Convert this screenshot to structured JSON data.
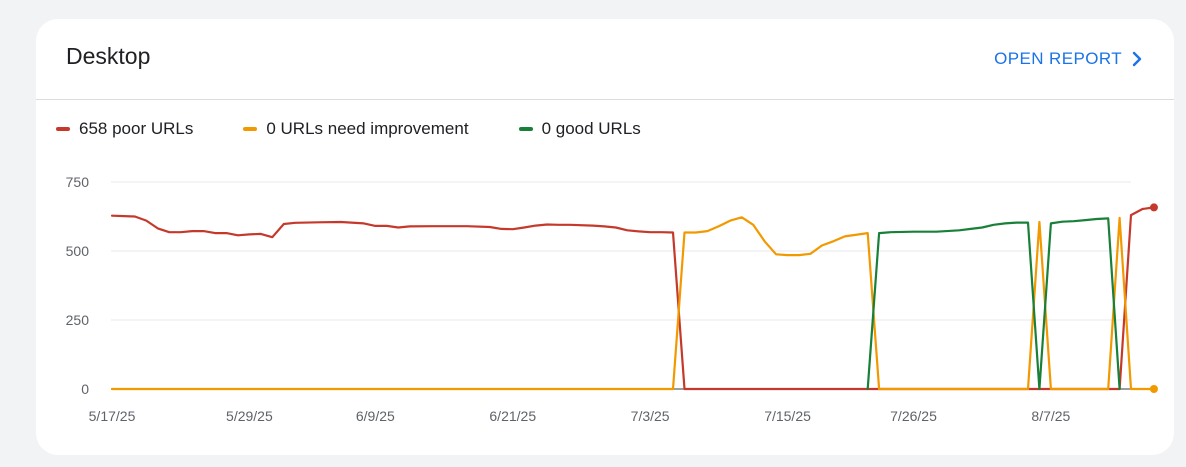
{
  "card": {
    "title": "Desktop",
    "open_report_label": "OPEN REPORT"
  },
  "legend": [
    {
      "label": "658 poor URLs",
      "color": "#c5392c"
    },
    {
      "label": "0 URLs need improvement",
      "color": "#f29900"
    },
    {
      "label": "0 good URLs",
      "color": "#188038"
    }
  ],
  "icons": {
    "open_report": "chevron-right-icon"
  },
  "chart_data": {
    "type": "line",
    "xlabel": "",
    "ylabel": "",
    "ylim": [
      0,
      750
    ],
    "yticks": [
      0,
      250,
      500,
      750
    ],
    "x_tick_labels": [
      "5/17/25",
      "5/29/25",
      "6/9/25",
      "6/21/25",
      "7/3/25",
      "7/15/25",
      "7/26/25",
      "8/7/25"
    ],
    "x_tick_dates": [
      "2025-05-17",
      "2025-05-29",
      "2025-06-09",
      "2025-06-21",
      "2025-07-03",
      "2025-07-15",
      "2025-07-26",
      "2025-08-07"
    ],
    "xlim": [
      "2025-05-17",
      "2025-08-17"
    ],
    "grid": true,
    "legend_position": "top-left",
    "series": [
      {
        "name": "658 poor URLs",
        "color": "#c5392c",
        "points": [
          [
            "2025-05-17",
            628
          ],
          [
            "2025-05-19",
            625
          ],
          [
            "2025-05-20",
            610
          ],
          [
            "2025-05-21",
            582
          ],
          [
            "2025-05-22",
            568
          ],
          [
            "2025-05-23",
            568
          ],
          [
            "2025-05-24",
            572
          ],
          [
            "2025-05-25",
            572
          ],
          [
            "2025-05-26",
            565
          ],
          [
            "2025-05-27",
            565
          ],
          [
            "2025-05-28",
            557
          ],
          [
            "2025-05-29",
            560
          ],
          [
            "2025-05-30",
            562
          ],
          [
            "2025-05-31",
            550
          ],
          [
            "2025-06-01",
            598
          ],
          [
            "2025-06-02",
            602
          ],
          [
            "2025-06-04",
            604
          ],
          [
            "2025-06-06",
            605
          ],
          [
            "2025-06-08",
            600
          ],
          [
            "2025-06-09",
            591
          ],
          [
            "2025-06-10",
            591
          ],
          [
            "2025-06-11",
            585
          ],
          [
            "2025-06-12",
            589
          ],
          [
            "2025-06-14",
            590
          ],
          [
            "2025-06-17",
            590
          ],
          [
            "2025-06-19",
            587
          ],
          [
            "2025-06-20",
            580
          ],
          [
            "2025-06-21",
            579
          ],
          [
            "2025-06-22",
            585
          ],
          [
            "2025-06-23",
            592
          ],
          [
            "2025-06-24",
            596
          ],
          [
            "2025-06-25",
            595
          ],
          [
            "2025-06-26",
            595
          ],
          [
            "2025-06-28",
            592
          ],
          [
            "2025-06-29",
            589
          ],
          [
            "2025-06-30",
            585
          ],
          [
            "2025-07-01",
            575
          ],
          [
            "2025-07-02",
            571
          ],
          [
            "2025-07-03",
            568
          ],
          [
            "2025-07-04",
            568
          ],
          [
            "2025-07-05",
            567
          ],
          [
            "2025-07-06",
            0
          ],
          [
            "2025-08-13",
            0
          ],
          [
            "2025-08-14",
            630
          ],
          [
            "2025-08-15",
            652
          ],
          [
            "2025-08-16",
            658
          ]
        ]
      },
      {
        "name": "0 URLs need improvement",
        "color": "#f29900",
        "points": [
          [
            "2025-05-17",
            0
          ],
          [
            "2025-07-05",
            0
          ],
          [
            "2025-07-06",
            567
          ],
          [
            "2025-07-07",
            567
          ],
          [
            "2025-07-08",
            572
          ],
          [
            "2025-07-09",
            590
          ],
          [
            "2025-07-10",
            610
          ],
          [
            "2025-07-11",
            622
          ],
          [
            "2025-07-12",
            595
          ],
          [
            "2025-07-13",
            535
          ],
          [
            "2025-07-14",
            488
          ],
          [
            "2025-07-15",
            485
          ],
          [
            "2025-07-16",
            485
          ],
          [
            "2025-07-17",
            490
          ],
          [
            "2025-07-18",
            520
          ],
          [
            "2025-07-19",
            535
          ],
          [
            "2025-07-20",
            553
          ],
          [
            "2025-07-22",
            565
          ],
          [
            "2025-07-23",
            0
          ],
          [
            "2025-08-05",
            0
          ],
          [
            "2025-08-06",
            605
          ],
          [
            "2025-08-07",
            0
          ],
          [
            "2025-08-12",
            0
          ],
          [
            "2025-08-13",
            620
          ],
          [
            "2025-08-14",
            0
          ],
          [
            "2025-08-16",
            0
          ]
        ]
      },
      {
        "name": "0 good URLs",
        "color": "#188038",
        "points": [
          [
            "2025-07-22",
            0
          ],
          [
            "2025-07-23",
            565
          ],
          [
            "2025-07-24",
            568
          ],
          [
            "2025-07-26",
            570
          ],
          [
            "2025-07-28",
            570
          ],
          [
            "2025-07-30",
            575
          ],
          [
            "2025-07-31",
            580
          ],
          [
            "2025-08-01",
            585
          ],
          [
            "2025-08-02",
            595
          ],
          [
            "2025-08-03",
            600
          ],
          [
            "2025-08-04",
            603
          ],
          [
            "2025-08-05",
            603
          ],
          [
            "2025-08-06",
            0
          ],
          [
            "2025-08-07",
            600
          ],
          [
            "2025-08-08",
            606
          ],
          [
            "2025-08-09",
            608
          ],
          [
            "2025-08-10",
            612
          ],
          [
            "2025-08-11",
            616
          ],
          [
            "2025-08-12",
            618
          ],
          [
            "2025-08-13",
            0
          ]
        ]
      }
    ]
  }
}
